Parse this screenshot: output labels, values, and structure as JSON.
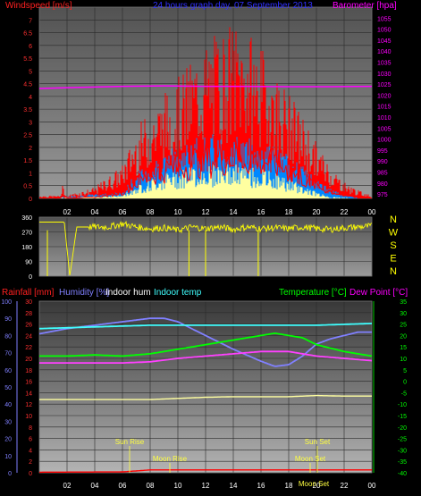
{
  "chart_data": [
    {
      "type": "line",
      "title": "24 hours graph day, 07 September 2013",
      "left_label": "Windspeed [m/s]",
      "right_label": "Barometer [hpa]",
      "x_ticks": [
        "02",
        "04",
        "06",
        "08",
        "10",
        "12",
        "14",
        "16",
        "18",
        "20",
        "22",
        "00"
      ],
      "x_range": [
        0,
        24
      ],
      "y_left_range": [
        0,
        7.5
      ],
      "y_left_ticks": [
        "0",
        "0.5",
        "1",
        "1.5",
        "2",
        "2.5",
        "3",
        "3.5",
        "4",
        "4.5",
        "5",
        "5.5",
        "6",
        "6.5",
        "7"
      ],
      "y_right_range": [
        973,
        1060
      ],
      "y_right_ticks": [
        "975",
        "980",
        "985",
        "990",
        "995",
        "1000",
        "1005",
        "1010",
        "1015",
        "1020",
        "1025",
        "1030",
        "1035",
        "1040",
        "1045",
        "1050",
        "1055"
      ],
      "grid": true,
      "series": [
        {
          "name": "Windspeed [m/s]",
          "color": "#ff0000",
          "profile": [
            [
              0,
              0.05
            ],
            [
              1.5,
              0.05
            ],
            [
              1.7,
              0.4
            ],
            [
              1.9,
              0.05
            ],
            [
              4,
              0.1
            ],
            [
              5,
              0.3
            ],
            [
              6,
              0.6
            ],
            [
              7,
              1.5
            ],
            [
              8,
              2.2
            ],
            [
              9,
              2.8
            ],
            [
              10,
              3.0
            ],
            [
              11,
              3.5
            ],
            [
              12,
              3.8
            ],
            [
              13,
              4.0
            ],
            [
              14,
              4.2
            ],
            [
              15,
              4.0
            ],
            [
              16,
              3.8
            ],
            [
              17,
              3.4
            ],
            [
              18,
              2.8
            ],
            [
              19,
              2.0
            ],
            [
              20,
              1.2
            ],
            [
              21,
              0.7
            ],
            [
              22,
              0.3
            ],
            [
              23,
              0.1
            ],
            [
              24,
              0.05
            ]
          ]
        },
        {
          "name": "Wind gust",
          "color": "#ff0000",
          "profile": [
            [
              0,
              0.1
            ],
            [
              1.5,
              0.1
            ],
            [
              1.7,
              0.5
            ],
            [
              1.9,
              0.1
            ],
            [
              4,
              0.4
            ],
            [
              5,
              0.8
            ],
            [
              6,
              1.2
            ],
            [
              7,
              2.5
            ],
            [
              8,
              3.2
            ],
            [
              9,
              3.8
            ],
            [
              10,
              4.3
            ],
            [
              11,
              5.0
            ],
            [
              12,
              5.6
            ],
            [
              13,
              6.0
            ],
            [
              14,
              6.3
            ],
            [
              15,
              6.0
            ],
            [
              16,
              5.4
            ],
            [
              17,
              4.6
            ],
            [
              18,
              3.8
            ],
            [
              19,
              3.0
            ],
            [
              20,
              2.0
            ],
            [
              21,
              1.2
            ],
            [
              22,
              0.6
            ],
            [
              23,
              0.3
            ],
            [
              24,
              0.1
            ]
          ]
        },
        {
          "name": "Average wind",
          "color": "#0088ff",
          "profile": [
            [
              0,
              0
            ],
            [
              6,
              0.2
            ],
            [
              7,
              0.8
            ],
            [
              9,
              1.4
            ],
            [
              11,
              1.8
            ],
            [
              13,
              2.0
            ],
            [
              15,
              1.9
            ],
            [
              17,
              1.6
            ],
            [
              19,
              1.0
            ],
            [
              20,
              0.6
            ],
            [
              21,
              0.3
            ],
            [
              22,
              0.1
            ],
            [
              24,
              0
            ]
          ]
        },
        {
          "name": "Wind low",
          "color": "#ffffa0",
          "profile": [
            [
              0,
              0
            ],
            [
              6,
              0.1
            ],
            [
              7,
              0.4
            ],
            [
              9,
              0.8
            ],
            [
              11,
              1.0
            ],
            [
              13,
              1.1
            ],
            [
              15,
              1.0
            ],
            [
              17,
              0.8
            ],
            [
              19,
              0.4
            ],
            [
              20,
              0.2
            ],
            [
              21,
              0.05
            ],
            [
              24,
              0
            ]
          ]
        },
        {
          "name": "Barometer [hpa]",
          "color": "#ff00ff",
          "axis": "right",
          "x": [
            0,
            3,
            6,
            9,
            12,
            15,
            18,
            21,
            24
          ],
          "y": [
            1023,
            1023.5,
            1024,
            1024.2,
            1024,
            1024,
            1023.8,
            1023.8,
            1024
          ]
        }
      ]
    },
    {
      "type": "line",
      "title": "",
      "x_range": [
        0,
        24
      ],
      "y_left_range": [
        0,
        360
      ],
      "y_left_ticks": [
        "0",
        "90",
        "180",
        "270",
        "360"
      ],
      "y_right_labels": [
        "N",
        "W",
        "S",
        "E",
        "N"
      ],
      "grid": true,
      "series": [
        {
          "name": "Wind direction",
          "color": "#ffff00",
          "x": [
            0,
            0.2,
            1.8,
            2.2,
            2.7,
            3.1,
            3.4,
            3.6,
            4.4,
            5,
            6,
            7,
            8,
            9,
            10,
            11,
            12,
            13,
            14,
            15,
            16,
            17,
            18,
            19,
            20,
            21,
            22,
            23,
            24
          ],
          "y": [
            330,
            330,
            330,
            0,
            300,
            300,
            300,
            300,
            300,
            300,
            320,
            300,
            290,
            295,
            280,
            300,
            290,
            300,
            285,
            300,
            290,
            295,
            290,
            300,
            290,
            285,
            295,
            300,
            305
          ]
        }
      ]
    },
    {
      "type": "line",
      "title": "",
      "x_ticks": [
        "02",
        "04",
        "06",
        "08",
        "10",
        "12",
        "14",
        "16",
        "18",
        "20",
        "22",
        "00"
      ],
      "x_range": [
        0,
        24
      ],
      "legend": [
        "Rainfall [mm]",
        "Humidity [%]",
        "Indoor hum",
        "Indoor temp",
        "Temperature [°C]",
        "Dew Point [°C]"
      ],
      "y_far_left_range": [
        0,
        100
      ],
      "y_far_left_ticks": [
        "0",
        "10",
        "20",
        "30",
        "40",
        "50",
        "60",
        "70",
        "80",
        "90",
        "100"
      ],
      "y_left_range": [
        0,
        30
      ],
      "y_left_ticks": [
        "0",
        "2",
        "4",
        "6",
        "8",
        "10",
        "12",
        "14",
        "16",
        "18",
        "20",
        "22",
        "24",
        "26",
        "28",
        "30"
      ],
      "y_right_range": [
        -40,
        35
      ],
      "y_right_ticks": [
        "-40",
        "-35",
        "-30",
        "-25",
        "-20",
        "-15",
        "-10",
        "-5",
        "0",
        "5",
        "10",
        "15",
        "20",
        "25",
        "30",
        "35"
      ],
      "annotations": [
        "Sun Rise",
        "Moon Rise",
        "Sun Set",
        "Moon Set",
        "Moon Set"
      ],
      "grid": true,
      "series": [
        {
          "name": "Humidity [%]",
          "color": "#8080ff",
          "axis": "percent",
          "x": [
            0,
            2,
            4,
            6,
            8,
            9,
            10,
            12,
            14,
            16,
            17,
            18,
            19,
            20,
            21,
            22,
            23,
            24
          ],
          "y": [
            81,
            84,
            86,
            88,
            90,
            90,
            88,
            80,
            72,
            65,
            62,
            63,
            68,
            75,
            78,
            80,
            82,
            82
          ]
        },
        {
          "name": "Indoor hum",
          "color": "#40ffff",
          "axis": "percent",
          "x": [
            0,
            4,
            8,
            12,
            16,
            20,
            24
          ],
          "y": [
            84,
            85,
            86,
            86,
            86,
            86,
            87
          ]
        },
        {
          "name": "Temperature [°C]",
          "color": "#00ff00",
          "axis": "temp",
          "x": [
            0,
            2,
            4,
            6,
            8,
            10,
            12,
            14,
            16,
            17,
            18,
            19,
            20,
            22,
            24
          ],
          "y": [
            11,
            11,
            11.5,
            11,
            12,
            14,
            16,
            18,
            20,
            21,
            20,
            19,
            16,
            13,
            11
          ]
        },
        {
          "name": "Dew Point [°C]",
          "color": "#ff40ff",
          "axis": "temp",
          "x": [
            0,
            2,
            4,
            6,
            8,
            10,
            12,
            14,
            16,
            18,
            19,
            20,
            22,
            24
          ],
          "y": [
            8,
            8,
            8,
            8,
            8.5,
            10,
            11,
            12,
            13,
            13,
            12,
            11,
            10,
            9
          ]
        },
        {
          "name": "Indoor temp",
          "color": "#ffffa0",
          "axis": "left",
          "x": [
            0,
            4,
            8,
            10,
            12,
            14,
            16,
            18,
            20,
            22,
            24
          ],
          "y": [
            12.8,
            12.8,
            12.8,
            13,
            13.2,
            13.3,
            13.3,
            13.3,
            13.5,
            13.4,
            13.4
          ]
        },
        {
          "name": "Rainfall [mm]",
          "color": "#ff0000",
          "axis": "left",
          "x": [
            0,
            6,
            8,
            12,
            16,
            20,
            24
          ],
          "y": [
            0.1,
            0.15,
            0.5,
            0.5,
            0.5,
            0.5,
            0.5
          ]
        }
      ]
    }
  ]
}
